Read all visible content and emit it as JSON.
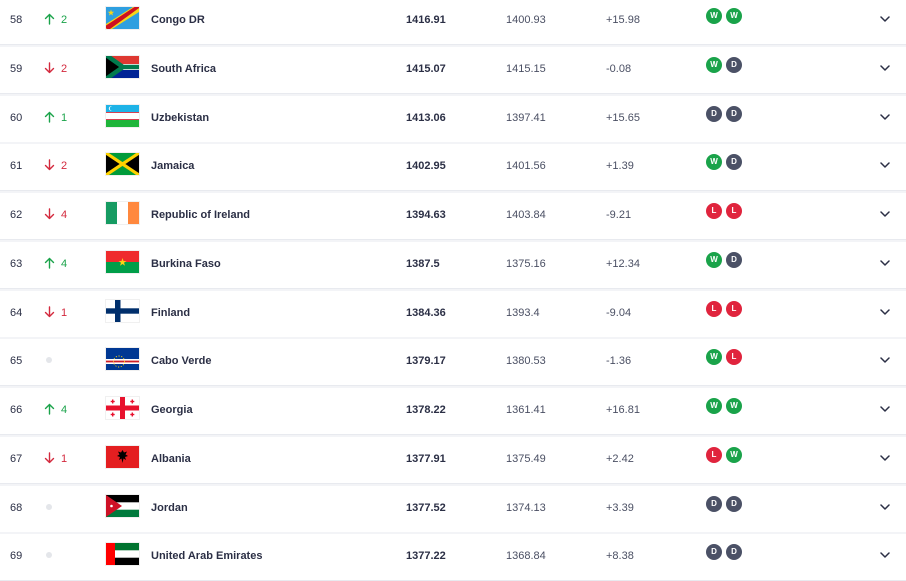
{
  "colors": {
    "up": "#1aa34a",
    "down": "#d3293d",
    "win": "#1aa34a",
    "draw": "#4b5166",
    "loss": "#e0243d"
  },
  "rows": [
    {
      "rank": "58",
      "move_dir": "up",
      "move": "2",
      "flag": "cod",
      "country": "Congo DR",
      "points": "1416.91",
      "previous": "1400.93",
      "change": "+15.98",
      "form": [
        "W",
        "W"
      ]
    },
    {
      "rank": "59",
      "move_dir": "down",
      "move": "2",
      "flag": "rsa",
      "country": "South Africa",
      "points": "1415.07",
      "previous": "1415.15",
      "change": "-0.08",
      "form": [
        "W",
        "D"
      ]
    },
    {
      "rank": "60",
      "move_dir": "up",
      "move": "1",
      "flag": "uzb",
      "country": "Uzbekistan",
      "points": "1413.06",
      "previous": "1397.41",
      "change": "+15.65",
      "form": [
        "D",
        "D"
      ]
    },
    {
      "rank": "61",
      "move_dir": "down",
      "move": "2",
      "flag": "jam",
      "country": "Jamaica",
      "points": "1402.95",
      "previous": "1401.56",
      "change": "+1.39",
      "form": [
        "W",
        "D"
      ]
    },
    {
      "rank": "62",
      "move_dir": "down",
      "move": "4",
      "flag": "irl",
      "country": "Republic of Ireland",
      "points": "1394.63",
      "previous": "1403.84",
      "change": "-9.21",
      "form": [
        "L",
        "L"
      ]
    },
    {
      "rank": "63",
      "move_dir": "up",
      "move": "4",
      "flag": "bfa",
      "country": "Burkina Faso",
      "points": "1387.5",
      "previous": "1375.16",
      "change": "+12.34",
      "form": [
        "W",
        "D"
      ]
    },
    {
      "rank": "64",
      "move_dir": "down",
      "move": "1",
      "flag": "fin",
      "country": "Finland",
      "points": "1384.36",
      "previous": "1393.4",
      "change": "-9.04",
      "form": [
        "L",
        "L"
      ]
    },
    {
      "rank": "65",
      "move_dir": "none",
      "move": "",
      "flag": "cpv",
      "country": "Cabo Verde",
      "points": "1379.17",
      "previous": "1380.53",
      "change": "-1.36",
      "form": [
        "W",
        "L"
      ]
    },
    {
      "rank": "66",
      "move_dir": "up",
      "move": "4",
      "flag": "geo",
      "country": "Georgia",
      "points": "1378.22",
      "previous": "1361.41",
      "change": "+16.81",
      "form": [
        "W",
        "W"
      ]
    },
    {
      "rank": "67",
      "move_dir": "down",
      "move": "1",
      "flag": "alb",
      "country": "Albania",
      "points": "1377.91",
      "previous": "1375.49",
      "change": "+2.42",
      "form": [
        "L",
        "W"
      ]
    },
    {
      "rank": "68",
      "move_dir": "none",
      "move": "",
      "flag": "jor",
      "country": "Jordan",
      "points": "1377.52",
      "previous": "1374.13",
      "change": "+3.39",
      "form": [
        "D",
        "D"
      ]
    },
    {
      "rank": "69",
      "move_dir": "none",
      "move": "",
      "flag": "uae",
      "country": "United Arab Emirates",
      "points": "1377.22",
      "previous": "1368.84",
      "change": "+8.38",
      "form": [
        "D",
        "D"
      ]
    }
  ]
}
